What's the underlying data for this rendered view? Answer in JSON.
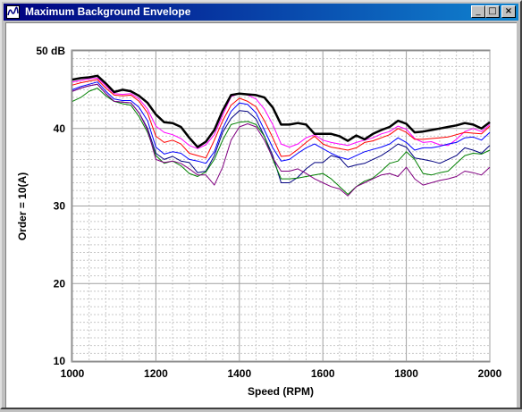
{
  "window": {
    "title": "Maximum Background Envelope"
  },
  "title_buttons": {
    "minimize": "_",
    "maximize": "□",
    "close": "×"
  },
  "chart_data": {
    "type": "line",
    "title": "",
    "xlabel": "Speed (RPM)",
    "ylabel": "Order = 10(A)",
    "xlim": [
      1000,
      2000
    ],
    "ylim": [
      10,
      50
    ],
    "x_ticks": [
      "1000",
      "1200",
      "1400",
      "1600",
      "1800",
      "2000"
    ],
    "y_ticks": [
      "10",
      "20",
      "30",
      "40",
      "50 dB"
    ],
    "grid": true,
    "series": [
      {
        "color": "#000000",
        "width": 2.5,
        "x": [
          1000,
          1020,
          1040,
          1060,
          1080,
          1100,
          1120,
          1140,
          1160,
          1180,
          1200,
          1220,
          1240,
          1260,
          1280,
          1300,
          1320,
          1340,
          1360,
          1380,
          1400,
          1420,
          1440,
          1460,
          1480,
          1500,
          1520,
          1540,
          1560,
          1580,
          1600,
          1620,
          1640,
          1660,
          1680,
          1700,
          1720,
          1740,
          1760,
          1780,
          1800,
          1820,
          1840,
          1860,
          1880,
          1900,
          1920,
          1940,
          1960,
          1980,
          2000
        ],
        "y": [
          46.3,
          46.5,
          46.6,
          46.8,
          45.8,
          44.7,
          45.0,
          44.8,
          44.2,
          43.3,
          41.8,
          40.8,
          40.7,
          40.2,
          38.8,
          37.6,
          38.3,
          39.8,
          42.3,
          44.3,
          44.5,
          44.4,
          44.3,
          44.0,
          42.7,
          40.5,
          40.5,
          40.7,
          40.5,
          39.3,
          39.3,
          39.3,
          39.0,
          38.4,
          39.1,
          38.6,
          39.3,
          39.8,
          40.2,
          41.0,
          40.6,
          39.5,
          39.6,
          39.8,
          40.0,
          40.2,
          40.4,
          40.7,
          40.5,
          40.0,
          40.8
        ]
      },
      {
        "color": "#ff00ff",
        "width": 1,
        "x": [
          1000,
          1020,
          1040,
          1060,
          1080,
          1100,
          1120,
          1140,
          1160,
          1180,
          1200,
          1220,
          1240,
          1260,
          1280,
          1300,
          1320,
          1340,
          1360,
          1380,
          1400,
          1420,
          1440,
          1460,
          1480,
          1500,
          1520,
          1540,
          1560,
          1580,
          1600,
          1620,
          1640,
          1660,
          1680,
          1700,
          1720,
          1740,
          1760,
          1780,
          1800,
          1820,
          1840,
          1860,
          1880,
          1900,
          1920,
          1940,
          1960,
          1980,
          2000
        ],
        "y": [
          46.0,
          46.2,
          46.4,
          46.5,
          45.5,
          44.5,
          44.4,
          44.5,
          43.8,
          42.5,
          40.3,
          39.5,
          39.2,
          38.7,
          37.8,
          37.4,
          37.9,
          39.2,
          41.7,
          44.1,
          44.5,
          44.3,
          43.8,
          42.5,
          40.5,
          38.0,
          37.6,
          38.0,
          38.8,
          39.2,
          38.5,
          38.2,
          38.0,
          37.8,
          38.2,
          38.5,
          38.8,
          39.3,
          39.6,
          40.3,
          39.9,
          38.7,
          38.2,
          38.3,
          37.9,
          37.8,
          38.6,
          39.6,
          40.0,
          39.6,
          40.5
        ]
      },
      {
        "color": "#ff0000",
        "width": 1,
        "x": [
          1000,
          1020,
          1040,
          1060,
          1080,
          1100,
          1120,
          1140,
          1160,
          1180,
          1200,
          1220,
          1240,
          1260,
          1280,
          1300,
          1320,
          1340,
          1360,
          1380,
          1400,
          1420,
          1440,
          1460,
          1480,
          1500,
          1520,
          1540,
          1560,
          1580,
          1600,
          1620,
          1640,
          1660,
          1680,
          1700,
          1720,
          1740,
          1760,
          1780,
          1800,
          1820,
          1840,
          1860,
          1880,
          1900,
          1920,
          1940,
          1960,
          1980,
          2000
        ],
        "y": [
          45.6,
          45.9,
          46.1,
          46.3,
          45.2,
          44.3,
          44.2,
          44.3,
          43.5,
          42.0,
          39.0,
          38.2,
          38.5,
          38.0,
          36.8,
          36.5,
          36.2,
          38.5,
          41.0,
          43.0,
          43.9,
          43.5,
          42.8,
          41.0,
          38.8,
          36.4,
          36.5,
          37.3,
          38.2,
          39.0,
          38.0,
          37.6,
          37.4,
          37.2,
          37.5,
          38.2,
          38.4,
          38.8,
          39.2,
          40.0,
          39.5,
          38.6,
          38.6,
          38.7,
          38.8,
          38.9,
          39.2,
          39.5,
          39.4,
          39.3,
          40.3
        ]
      },
      {
        "color": "#0000ff",
        "width": 1,
        "x": [
          1000,
          1020,
          1040,
          1060,
          1080,
          1100,
          1120,
          1140,
          1160,
          1180,
          1200,
          1220,
          1240,
          1260,
          1280,
          1300,
          1320,
          1340,
          1360,
          1380,
          1400,
          1420,
          1440,
          1460,
          1480,
          1500,
          1520,
          1540,
          1560,
          1580,
          1600,
          1620,
          1640,
          1660,
          1680,
          1700,
          1720,
          1740,
          1760,
          1780,
          1800,
          1820,
          1840,
          1860,
          1880,
          1900,
          1920,
          1940,
          1960,
          1980,
          2000
        ],
        "y": [
          45.0,
          45.4,
          45.7,
          46.0,
          44.8,
          43.8,
          43.6,
          43.6,
          42.7,
          41.0,
          37.6,
          36.7,
          37.0,
          36.8,
          36.0,
          35.8,
          35.5,
          37.0,
          40.0,
          42.2,
          43.3,
          43.1,
          42.0,
          39.8,
          37.5,
          35.8,
          36.0,
          36.8,
          37.5,
          38.0,
          37.4,
          36.8,
          36.3,
          36.0,
          36.5,
          37.0,
          37.3,
          37.6,
          38.0,
          38.8,
          38.2,
          37.2,
          37.5,
          37.5,
          37.7,
          38.0,
          38.2,
          38.8,
          38.9,
          38.5,
          39.5
        ]
      },
      {
        "color": "#000080",
        "width": 1,
        "x": [
          1000,
          1020,
          1040,
          1060,
          1080,
          1100,
          1120,
          1140,
          1160,
          1180,
          1200,
          1220,
          1240,
          1260,
          1280,
          1300,
          1320,
          1340,
          1360,
          1380,
          1400,
          1420,
          1440,
          1460,
          1480,
          1500,
          1520,
          1540,
          1560,
          1580,
          1600,
          1620,
          1640,
          1660,
          1680,
          1700,
          1720,
          1740,
          1760,
          1780,
          1800,
          1820,
          1840,
          1860,
          1880,
          1900,
          1920,
          1940,
          1960,
          1980,
          2000
        ],
        "y": [
          44.8,
          45.2,
          45.5,
          45.7,
          44.5,
          43.5,
          43.4,
          43.3,
          42.0,
          40.0,
          36.8,
          36.0,
          36.4,
          35.8,
          35.6,
          34.3,
          34.5,
          36.5,
          39.5,
          41.3,
          42.3,
          42.2,
          41.2,
          39.0,
          36.5,
          33.0,
          33.0,
          33.7,
          34.8,
          35.6,
          35.6,
          36.5,
          36.2,
          35.0,
          35.3,
          35.5,
          36.0,
          36.5,
          37.2,
          38.0,
          37.6,
          36.2,
          36.0,
          35.8,
          35.5,
          36.0,
          36.5,
          37.5,
          37.2,
          36.8,
          37.8
        ]
      },
      {
        "color": "#008000",
        "width": 1,
        "x": [
          1000,
          1020,
          1040,
          1060,
          1080,
          1100,
          1120,
          1140,
          1160,
          1180,
          1200,
          1220,
          1240,
          1260,
          1280,
          1300,
          1320,
          1340,
          1360,
          1380,
          1400,
          1420,
          1440,
          1460,
          1480,
          1500,
          1520,
          1540,
          1560,
          1580,
          1600,
          1620,
          1640,
          1660,
          1680,
          1700,
          1720,
          1740,
          1760,
          1780,
          1800,
          1820,
          1840,
          1860,
          1880,
          1900,
          1920,
          1940,
          1960,
          1980,
          2000
        ],
        "y": [
          43.5,
          44.0,
          44.8,
          45.2,
          44.2,
          43.5,
          43.2,
          43.0,
          41.5,
          39.5,
          36.5,
          35.5,
          35.8,
          35.2,
          34.2,
          33.8,
          34.4,
          36.0,
          38.5,
          40.5,
          40.8,
          40.9,
          40.5,
          39.0,
          36.0,
          33.5,
          33.5,
          33.6,
          33.8,
          34.0,
          34.2,
          33.5,
          32.5,
          31.5,
          32.5,
          33.2,
          33.6,
          34.5,
          35.5,
          35.8,
          37.0,
          36.0,
          34.2,
          34.0,
          34.3,
          34.5,
          35.5,
          36.5,
          36.8,
          36.7,
          37.2
        ]
      },
      {
        "color": "#800080",
        "width": 1,
        "x": [
          1000,
          1020,
          1040,
          1060,
          1080,
          1100,
          1120,
          1140,
          1160,
          1180,
          1200,
          1220,
          1240,
          1260,
          1280,
          1300,
          1320,
          1340,
          1360,
          1380,
          1400,
          1420,
          1440,
          1460,
          1480,
          1500,
          1520,
          1540,
          1560,
          1580,
          1600,
          1620,
          1640,
          1660,
          1680,
          1700,
          1720,
          1740,
          1760,
          1780,
          1800,
          1820,
          1840,
          1860,
          1880,
          1900,
          1920,
          1940,
          1960,
          1980,
          2000
        ],
        "y": [
          44.8,
          45.2,
          45.5,
          45.7,
          44.5,
          43.5,
          43.4,
          43.3,
          42.0,
          39.8,
          36.0,
          35.6,
          35.8,
          35.5,
          34.8,
          34.0,
          34.0,
          32.7,
          35.0,
          38.5,
          40.2,
          40.6,
          40.2,
          38.5,
          36.2,
          34.5,
          34.5,
          34.8,
          34.2,
          33.5,
          33.0,
          32.5,
          32.2,
          31.3,
          32.5,
          33.0,
          33.5,
          34.0,
          34.2,
          33.8,
          35.0,
          33.5,
          32.7,
          33.0,
          33.3,
          33.5,
          33.8,
          34.5,
          34.3,
          34.0,
          35.0
        ]
      }
    ]
  }
}
